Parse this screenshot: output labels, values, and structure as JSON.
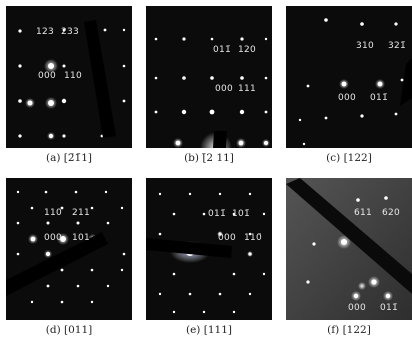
{
  "panels": [
    {
      "caption": "(a) [2̄1̄1]",
      "indices": [
        "123",
        "233",
        "000",
        "110"
      ]
    },
    {
      "caption": "(b) [̄2 11]",
      "indices": [
        "011̄",
        "120",
        "000",
        "111"
      ]
    },
    {
      "caption": "(c) [122]",
      "indices": [
        "310",
        "321̄",
        "000",
        "011̄"
      ]
    },
    {
      "caption": "(d) [011]",
      "indices": [
        "110",
        "211",
        "000",
        "101"
      ]
    },
    {
      "caption": "(e) [111]",
      "indices": [
        "011̄",
        "101̄",
        "000",
        "110̄"
      ]
    },
    {
      "caption": "(f) [122]",
      "indices": [
        "611",
        "620",
        "000",
        "011̄"
      ]
    }
  ],
  "colors": {
    "background": "#0b0b0b",
    "spot": "#ffffff",
    "text": "#e8e8e8",
    "caption": "#222222"
  }
}
